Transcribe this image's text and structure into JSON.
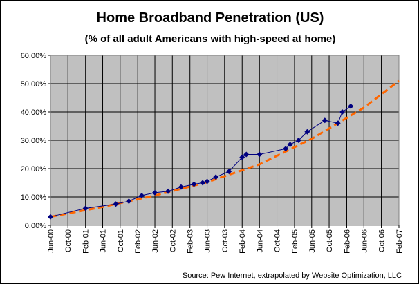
{
  "chart_data": {
    "type": "line",
    "title": "Home Broadband Penetration (US)",
    "subtitle": "(% of all adult Americans with high-speed at home)",
    "source": "Source: Pew Internet, extrapolated by Website Optimization, LLC",
    "xlabel": "",
    "ylabel": "",
    "x_range": [
      "2000-06-01",
      "2007-02-01"
    ],
    "ylim": [
      0,
      60
    ],
    "y_ticks": [
      0,
      10,
      20,
      30,
      40,
      50,
      60
    ],
    "y_tick_labels": [
      "0.00%",
      "10.00%",
      "20.00%",
      "30.00%",
      "40.00%",
      "50.00%",
      "60.00%"
    ],
    "x_ticks": [
      "2000-06-01",
      "2000-10-01",
      "2001-02-01",
      "2001-06-01",
      "2001-10-01",
      "2002-02-01",
      "2002-06-01",
      "2002-10-01",
      "2003-02-01",
      "2003-06-01",
      "2003-10-01",
      "2004-02-01",
      "2004-06-01",
      "2004-10-01",
      "2005-02-01",
      "2005-06-01",
      "2005-10-01",
      "2006-02-01",
      "2006-06-01",
      "2006-10-01",
      "2007-02-01"
    ],
    "x_tick_labels": [
      "Jun-00",
      "Oct-00",
      "Feb-01",
      "Jun-01",
      "Oct-01",
      "Feb-02",
      "Jun-02",
      "Oct-02",
      "Feb-03",
      "Jun-03",
      "Oct-03",
      "Feb-04",
      "Jun-04",
      "Oct-04",
      "Feb-05",
      "Jun-05",
      "Oct-05",
      "Feb-06",
      "Jun-06",
      "Oct-06",
      "Feb-07"
    ],
    "grid": true,
    "legend": "none",
    "colors": {
      "plot_background": "#c0c0c0",
      "data_series": "#000080",
      "trend_line": "#ff6600",
      "grid": "#000000"
    },
    "series": [
      {
        "marker": "diamond",
        "points": [
          {
            "x": "2000-06-01",
            "y": 3
          },
          {
            "x": "2001-02-01",
            "y": 6
          },
          {
            "x": "2001-09-01",
            "y": 7.5
          },
          {
            "x": "2001-12-01",
            "y": 8.5
          },
          {
            "x": "2002-03-01",
            "y": 10.5
          },
          {
            "x": "2002-06-01",
            "y": 11.5
          },
          {
            "x": "2002-09-01",
            "y": 12
          },
          {
            "x": "2002-12-01",
            "y": 13.5
          },
          {
            "x": "2003-03-01",
            "y": 14.5
          },
          {
            "x": "2003-05-01",
            "y": 15
          },
          {
            "x": "2003-06-01",
            "y": 15.5
          },
          {
            "x": "2003-08-01",
            "y": 17
          },
          {
            "x": "2003-11-01",
            "y": 19
          },
          {
            "x": "2004-02-01",
            "y": 24
          },
          {
            "x": "2004-03-01",
            "y": 25
          },
          {
            "x": "2004-06-01",
            "y": 25
          },
          {
            "x": "2004-12-01",
            "y": 27
          },
          {
            "x": "2005-01-01",
            "y": 28.5
          },
          {
            "x": "2005-03-01",
            "y": 30
          },
          {
            "x": "2005-05-01",
            "y": 33
          },
          {
            "x": "2005-09-01",
            "y": 37
          },
          {
            "x": "2005-12-01",
            "y": 36
          },
          {
            "x": "2006-01-01",
            "y": 40
          },
          {
            "x": "2006-03-01",
            "y": 42
          }
        ]
      },
      {
        "style": "dashed",
        "points": [
          {
            "x": "2000-06-01",
            "y": 3
          },
          {
            "x": "2001-06-01",
            "y": 6.5
          },
          {
            "x": "2002-06-01",
            "y": 10.5
          },
          {
            "x": "2003-06-01",
            "y": 15.2
          },
          {
            "x": "2004-06-01",
            "y": 21.5
          },
          {
            "x": "2005-06-01",
            "y": 30.5
          },
          {
            "x": "2006-06-01",
            "y": 41.5
          },
          {
            "x": "2007-02-01",
            "y": 51
          }
        ]
      }
    ]
  }
}
